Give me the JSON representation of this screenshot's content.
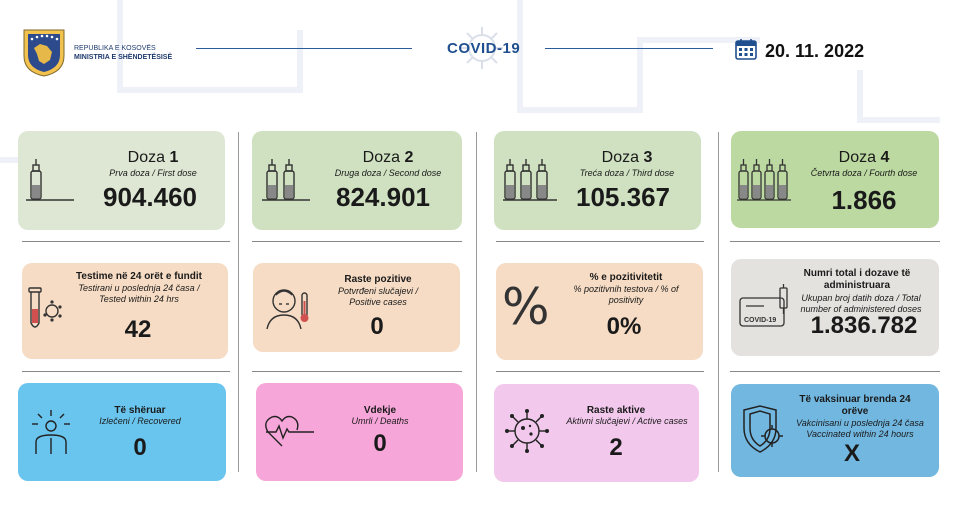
{
  "header": {
    "org_line1": "REPUBLIKA E KOSOVËS",
    "org_line2": "MINISTRIA E SHËNDETËSISË",
    "title": "COVID-19",
    "date": "20. 11. 2022"
  },
  "doses": [
    {
      "label": "Doza",
      "num": "1",
      "sub": "Prva doza / First dose",
      "value": "904.460"
    },
    {
      "label": "Doza",
      "num": "2",
      "sub": "Druga doza / Second dose",
      "value": "824.901"
    },
    {
      "label": "Doza",
      "num": "3",
      "sub": "Treća doza / Third dose",
      "value": "105.367"
    },
    {
      "label": "Doza",
      "num": "4",
      "sub": "Četvrta doza / Fourth dose",
      "value": "1.866"
    }
  ],
  "stats_row2": [
    {
      "title": "Testime në 24 orët e fundit",
      "sub": "Testirani u poslednja 24 časa / Tested within 24 hrs",
      "value": "42"
    },
    {
      "title": "Raste pozitive",
      "sub": "Potvrđeni slučajevi / Positive cases",
      "value": "0"
    },
    {
      "title": "% e pozitivitetit",
      "sub": "% pozitivnih testova / % of positivity",
      "value": "0%"
    },
    {
      "title": "Numri total i dozave të administruara",
      "sub": "Ukupan broj datih doza / Total number of administered doses",
      "value": "1.836.782"
    }
  ],
  "stats_row3": [
    {
      "title": "Të shëruar",
      "sub": "Izlečeni / Recovered",
      "value": "0"
    },
    {
      "title": "Vdekje",
      "sub": "Umrli / Deaths",
      "value": "0"
    },
    {
      "title": "Raste aktive",
      "sub": "Aktivni slučajevi / Active cases",
      "value": "2"
    },
    {
      "title": "Të vaksinuar brenda 24 orëve",
      "sub": "Vakcinisani u poslednja 24 časa Vaccinated within 24 hours",
      "value": "X"
    }
  ],
  "icons": {
    "pct_symbol": "%",
    "certificate_text": "COVID-19"
  },
  "colors": {
    "brand_blue": "#1f4f8f",
    "dose1": "#dde7d3",
    "dose2": "#cfe1c1",
    "dose3": "#cfe1c1",
    "dose4": "#bcd9a2",
    "peach": "#f6dcc4",
    "gray": "#e4e2df",
    "recovered": "#69c5ee",
    "deaths": "#f6a6d9",
    "active": "#f2c8ec",
    "vaccinated24": "#71b7e0"
  }
}
